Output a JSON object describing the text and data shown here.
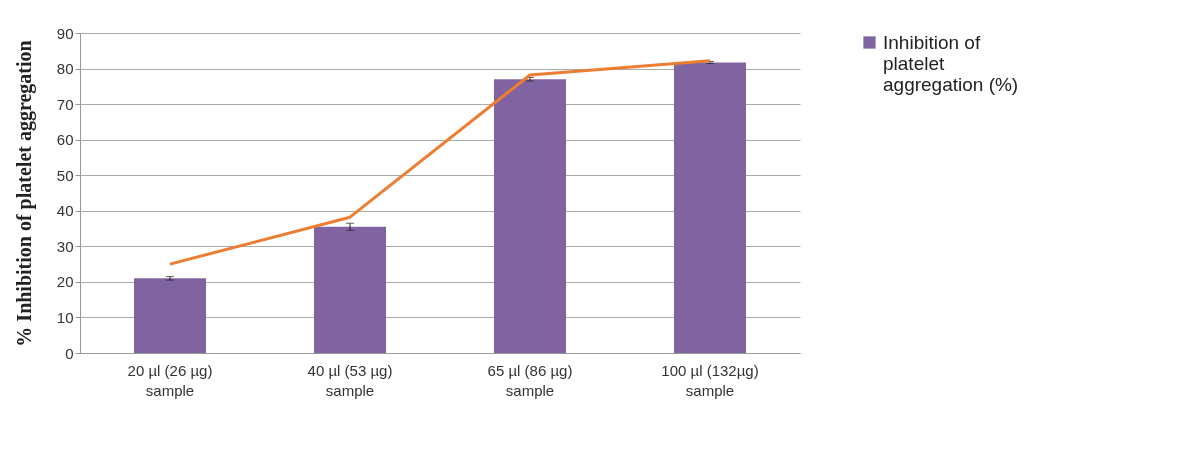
{
  "chart_data": {
    "type": "bar",
    "ylabel": "% Inhibition of platelet aggregation",
    "categories": [
      "20 µl (26 µg)\nsample",
      "40 µl (53 µg)\nsample",
      "65 µl (86 µg)\nsample",
      "100 µl (132µg)\nsample"
    ],
    "series": [
      {
        "name": "Inhibition of platelet aggregation (%)",
        "color": "#8064a2",
        "values": [
          21,
          35.5,
          77,
          81.7
        ],
        "errors": [
          0.5,
          1,
          0.5,
          0.3
        ]
      },
      {
        "type": "line",
        "color": "#ed7d31",
        "values": [
          25,
          38.2,
          78.2,
          82.2
        ]
      }
    ],
    "ylim": [
      0,
      90
    ],
    "yticks": [
      0,
      10,
      20,
      30,
      40,
      50,
      60,
      70,
      80,
      90
    ],
    "grid": "y",
    "legend": "right"
  }
}
